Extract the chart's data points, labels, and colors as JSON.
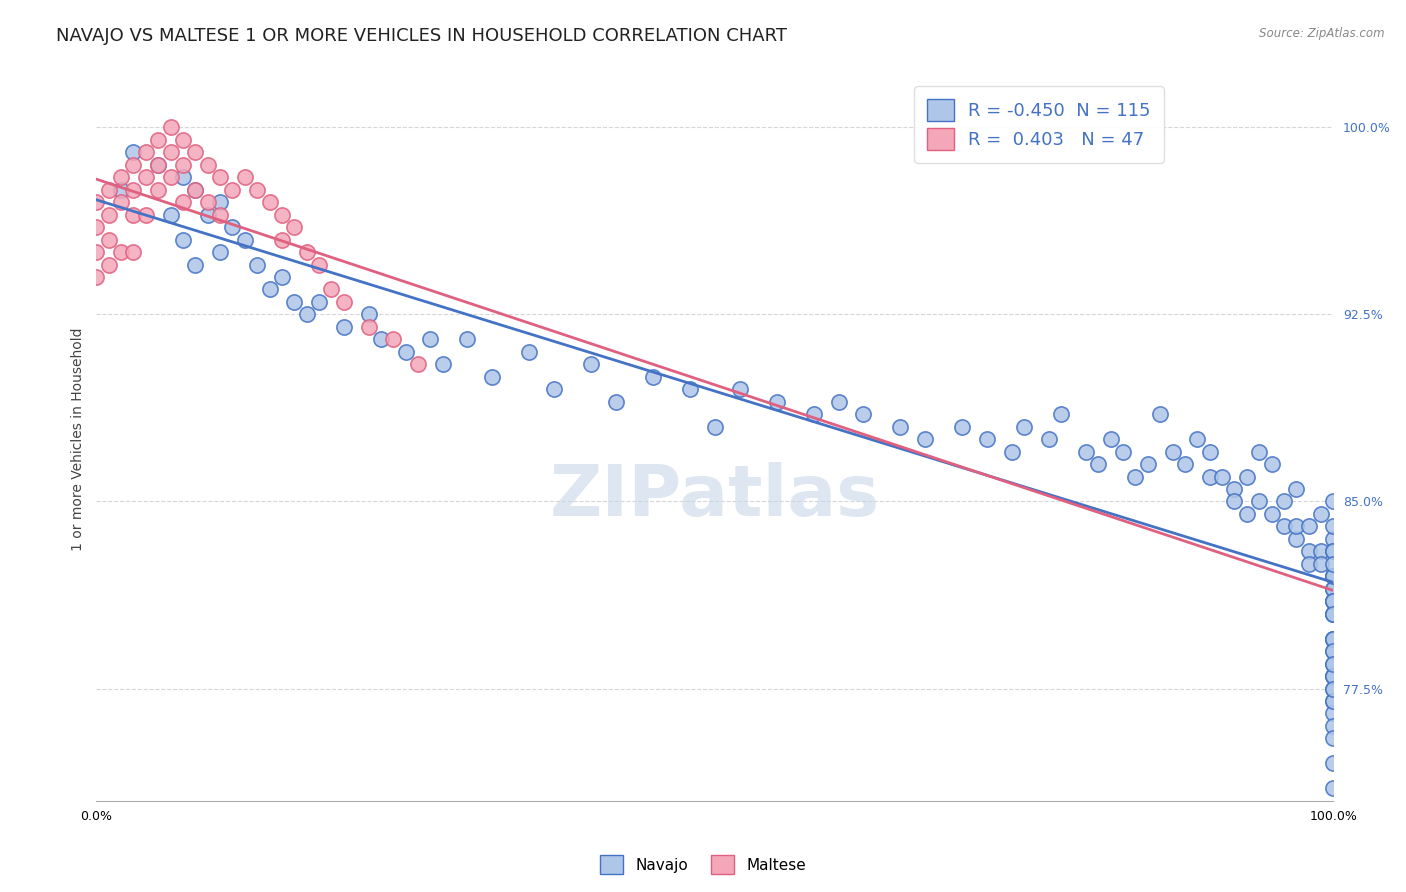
{
  "title": "NAVAJO VS MALTESE 1 OR MORE VEHICLES IN HOUSEHOLD CORRELATION CHART",
  "source_text": "Source: ZipAtlas.com",
  "ylabel": "1 or more Vehicles in Household",
  "watermark": "ZIPatlas",
  "legend": {
    "navajo": {
      "R": "-0.450",
      "N": "115"
    },
    "maltese": {
      "R": "0.403",
      "N": "47"
    }
  },
  "xlim": [
    0.0,
    1.0
  ],
  "ylim": [
    73.0,
    102.0
  ],
  "navajo_x": [
    0.02,
    0.03,
    0.05,
    0.06,
    0.07,
    0.07,
    0.08,
    0.08,
    0.09,
    0.1,
    0.1,
    0.11,
    0.12,
    0.13,
    0.14,
    0.15,
    0.16,
    0.17,
    0.18,
    0.2,
    0.22,
    0.23,
    0.25,
    0.27,
    0.28,
    0.3,
    0.32,
    0.35,
    0.37,
    0.4,
    0.42,
    0.45,
    0.48,
    0.5,
    0.52,
    0.55,
    0.58,
    0.6,
    0.62,
    0.65,
    0.67,
    0.7,
    0.72,
    0.74,
    0.75,
    0.77,
    0.78,
    0.8,
    0.81,
    0.82,
    0.83,
    0.84,
    0.85,
    0.86,
    0.87,
    0.88,
    0.89,
    0.9,
    0.9,
    0.91,
    0.92,
    0.92,
    0.93,
    0.93,
    0.94,
    0.94,
    0.95,
    0.95,
    0.96,
    0.96,
    0.97,
    0.97,
    0.97,
    0.98,
    0.98,
    0.98,
    0.99,
    0.99,
    0.99,
    1.0,
    1.0,
    1.0,
    1.0,
    1.0,
    1.0,
    1.0,
    1.0,
    1.0,
    1.0,
    1.0,
    1.0,
    1.0,
    1.0,
    1.0,
    1.0,
    1.0,
    1.0,
    1.0,
    1.0,
    1.0,
    1.0,
    1.0,
    1.0,
    1.0,
    1.0,
    1.0,
    1.0,
    1.0,
    1.0,
    1.0,
    1.0,
    1.0,
    1.0,
    1.0,
    1.0
  ],
  "navajo_y": [
    97.5,
    99.0,
    98.5,
    96.5,
    98.0,
    95.5,
    97.5,
    94.5,
    96.5,
    97.0,
    95.0,
    96.0,
    95.5,
    94.5,
    93.5,
    94.0,
    93.0,
    92.5,
    93.0,
    92.0,
    92.5,
    91.5,
    91.0,
    91.5,
    90.5,
    91.5,
    90.0,
    91.0,
    89.5,
    90.5,
    89.0,
    90.0,
    89.5,
    88.0,
    89.5,
    89.0,
    88.5,
    89.0,
    88.5,
    88.0,
    87.5,
    88.0,
    87.5,
    87.0,
    88.0,
    87.5,
    88.5,
    87.0,
    86.5,
    87.5,
    87.0,
    86.0,
    86.5,
    88.5,
    87.0,
    86.5,
    87.5,
    86.0,
    87.0,
    86.0,
    85.5,
    85.0,
    84.5,
    86.0,
    87.0,
    85.0,
    84.5,
    86.5,
    85.0,
    84.0,
    83.5,
    85.5,
    84.0,
    83.0,
    82.5,
    84.0,
    83.0,
    82.5,
    84.5,
    83.5,
    82.0,
    81.5,
    83.0,
    82.0,
    81.5,
    80.5,
    79.5,
    81.0,
    79.0,
    78.5,
    77.5,
    78.0,
    82.0,
    80.5,
    79.5,
    78.0,
    77.0,
    76.5,
    85.0,
    83.0,
    81.0,
    79.5,
    78.0,
    77.0,
    84.0,
    82.5,
    81.0,
    79.0,
    80.5,
    78.5,
    77.5,
    76.0,
    75.5,
    74.5,
    73.5
  ],
  "maltese_x": [
    0.0,
    0.0,
    0.0,
    0.0,
    0.01,
    0.01,
    0.01,
    0.01,
    0.02,
    0.02,
    0.02,
    0.03,
    0.03,
    0.03,
    0.03,
    0.04,
    0.04,
    0.04,
    0.05,
    0.05,
    0.05,
    0.06,
    0.06,
    0.06,
    0.07,
    0.07,
    0.07,
    0.08,
    0.08,
    0.09,
    0.09,
    0.1,
    0.1,
    0.11,
    0.12,
    0.13,
    0.14,
    0.15,
    0.15,
    0.16,
    0.17,
    0.18,
    0.19,
    0.2,
    0.22,
    0.24,
    0.26
  ],
  "maltese_y": [
    97.0,
    96.0,
    95.0,
    94.0,
    97.5,
    96.5,
    95.5,
    94.5,
    98.0,
    97.0,
    95.0,
    98.5,
    97.5,
    96.5,
    95.0,
    99.0,
    98.0,
    96.5,
    99.5,
    98.5,
    97.5,
    100.0,
    99.0,
    98.0,
    99.5,
    98.5,
    97.0,
    99.0,
    97.5,
    98.5,
    97.0,
    98.0,
    96.5,
    97.5,
    98.0,
    97.5,
    97.0,
    96.5,
    95.5,
    96.0,
    95.0,
    94.5,
    93.5,
    93.0,
    92.0,
    91.5,
    90.5
  ],
  "navajo_color": "#aec6e8",
  "maltese_color": "#f4a7b9",
  "navajo_line_color": "#4472c4",
  "maltese_line_color": "#e06080",
  "background_color": "#ffffff",
  "grid_color": "#cccccc",
  "title_fontsize": 13,
  "axis_label_fontsize": 10,
  "tick_fontsize": 9,
  "watermark_color": "#c8d8e8",
  "watermark_fontsize": 52
}
